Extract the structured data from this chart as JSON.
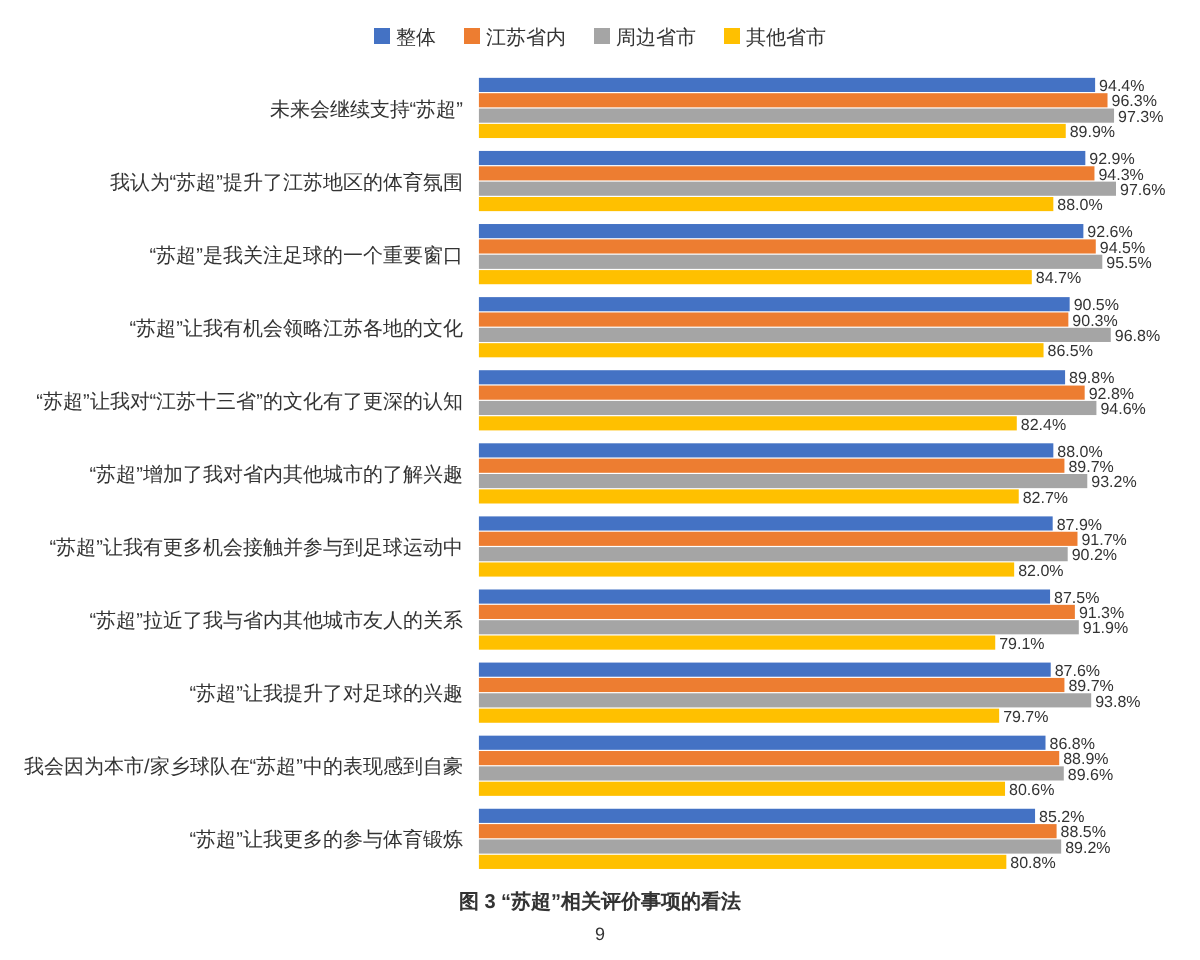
{
  "chart_data": {
    "type": "bar",
    "orientation": "horizontal",
    "categories": [
      "未来会继续支持“苏超”",
      "我认为“苏超”提升了江苏地区的体育氛围",
      "“苏超”是我关注足球的一个重要窗口",
      "“苏超”让我有机会领略江苏各地的文化",
      "“苏超”让我对“江苏十三省”的文化有了更深的认知",
      "“苏超”增加了我对省内其他城市的了解兴趣",
      "“苏超”让我有更多机会接触并参与到足球运动中",
      "“苏超”拉近了我与省内其他城市友人的关系",
      "“苏超”让我提升了对足球的兴趣",
      "我会因为本市/家乡球队在“苏超”中的表现感到自豪",
      "“苏超”让我更多的参与体育锻炼"
    ],
    "series": [
      {
        "name": "整体",
        "color": "#4472c4",
        "values": [
          94.4,
          92.9,
          92.6,
          90.5,
          89.8,
          88.0,
          87.9,
          87.5,
          87.6,
          86.8,
          85.2
        ],
        "value_labels": [
          "94.4%",
          "92.9%",
          "92.6%",
          "90.5%",
          "89.8%",
          "88.0%",
          "87.9%",
          "87.5%",
          "87.6%",
          "86.8%",
          "85.2%"
        ]
      },
      {
        "name": "江苏省内",
        "color": "#ed7d31",
        "values": [
          96.3,
          94.3,
          94.5,
          90.3,
          92.8,
          89.7,
          91.7,
          91.3,
          89.7,
          88.9,
          88.5
        ],
        "value_labels": [
          "96.3%",
          "94.3%",
          "94.5%",
          "90.3%",
          "92.8%",
          "89.7%",
          "91.7%",
          "91.3%",
          "89.7%",
          "88.9%",
          "88.5%"
        ]
      },
      {
        "name": "周边省市",
        "color": "#a5a5a5",
        "values": [
          97.3,
          97.6,
          95.5,
          96.8,
          94.6,
          93.2,
          90.2,
          91.9,
          93.8,
          89.6,
          89.2
        ],
        "value_labels": [
          "97.3%",
          "97.6%",
          "95.5%",
          "96.8%",
          "94.6%",
          "93.2%",
          "90.2%",
          "91.9%",
          "93.8%",
          "89.6%",
          "89.2%"
        ]
      },
      {
        "name": "其他省市",
        "color": "#ffc000",
        "values": [
          89.9,
          88.0,
          84.7,
          86.5,
          82.4,
          82.7,
          82.0,
          79.1,
          79.7,
          80.6,
          80.8
        ],
        "value_labels": [
          "89.9%",
          "88.0%",
          "84.7%",
          "86.5%",
          "82.4%",
          "82.7%",
          "82.0%",
          "79.1%",
          "79.7%",
          "80.6%",
          "80.8%"
        ]
      }
    ],
    "legend": "top",
    "annotations": [
      "图 3 “苏超”相关评价事项的看法",
      "9"
    ]
  }
}
